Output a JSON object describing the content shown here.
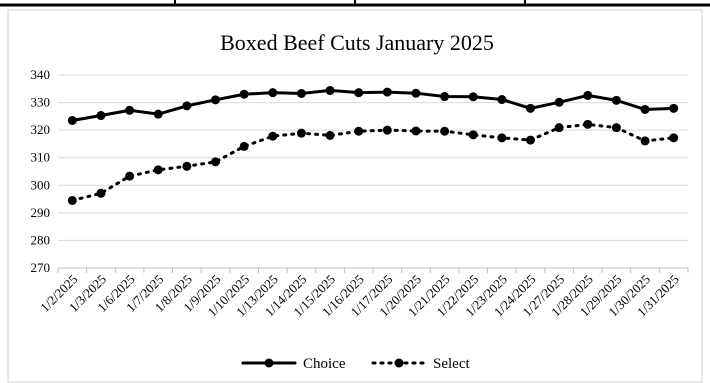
{
  "chart_data": {
    "type": "line",
    "title": "Boxed Beef Cuts January 2025",
    "xlabel": "",
    "ylabel": "",
    "ylim": [
      270,
      340
    ],
    "yticks": [
      270,
      280,
      290,
      300,
      310,
      320,
      330,
      340
    ],
    "categories": [
      "1/2/2025",
      "1/3/2025",
      "1/6/2025",
      "1/7/2025",
      "1/8/2025",
      "1/9/2025",
      "1/10/2025",
      "1/13/2025",
      "1/14/2025",
      "1/15/2025",
      "1/16/2025",
      "1/17/2025",
      "1/20/2025",
      "1/21/2025",
      "1/22/2025",
      "1/23/2025",
      "1/24/2025",
      "1/27/2025",
      "1/28/2025",
      "1/29/2025",
      "1/30/2025",
      "1/31/2025"
    ],
    "series": [
      {
        "name": "Choice",
        "style": "solid",
        "color": "#000000",
        "values": [
          323.5,
          325.3,
          327.2,
          325.8,
          328.8,
          331.0,
          333.0,
          333.6,
          333.3,
          334.4,
          333.6,
          333.8,
          333.4,
          332.2,
          332.1,
          331.1,
          327.9,
          330.1,
          332.6,
          330.8,
          327.5,
          327.9
        ]
      },
      {
        "name": "Select",
        "style": "dotted",
        "color": "#000000",
        "values": [
          294.5,
          297.1,
          303.3,
          305.6,
          306.9,
          308.5,
          314.1,
          317.8,
          318.9,
          318.1,
          319.6,
          320.0,
          319.7,
          319.6,
          318.3,
          317.2,
          316.4,
          320.9,
          322.1,
          320.9,
          316.1,
          317.2
        ]
      }
    ],
    "legend_position": "bottom",
    "grid": true
  }
}
